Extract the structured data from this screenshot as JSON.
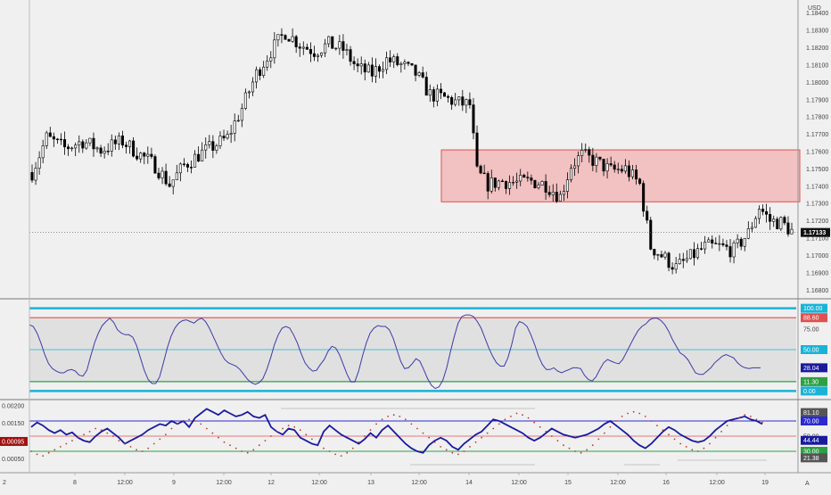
{
  "currency_label": "USD",
  "corner_label": "A",
  "last_price": "1.17133",
  "colors": {
    "background": "#f0f0f0",
    "up_candle": "#ffffff",
    "down_candle": "#000000",
    "zone_fill": "#f2b8b8",
    "zone_stroke": "#e05050",
    "stoch_line": "#3b3ba8",
    "cyan": "#1ab3d6",
    "red": "#e05050",
    "green": "#2ea043",
    "blue": "#2a2ad0",
    "dark_blue": "#1a1a9e",
    "dot_red": "#c0392b"
  },
  "chart_data": [
    {
      "type": "candlestick",
      "title": "",
      "y_axis_ticks": [
        "1.18400",
        "1.18300",
        "1.18200",
        "1.18100",
        "1.18000",
        "1.17900",
        "1.17800",
        "1.17700",
        "1.17600",
        "1.17500",
        "1.17400",
        "1.17300",
        "1.17200",
        "1.17100",
        "1.17000",
        "1.16900",
        "1.16800"
      ],
      "ylim": [
        1.1675,
        1.1845
      ],
      "x_ticks": [
        "8",
        "12:00",
        "9",
        "12:00",
        "12",
        "12:00",
        "13",
        "12:00",
        "14",
        "12:00",
        "15",
        "12:00",
        "16",
        "12:00",
        "19"
      ],
      "first_tick_label": "2",
      "zone": {
        "top": 1.1761,
        "bottom": 1.1731
      },
      "last_price": 1.17133,
      "close_path": [
        [
          0,
          1.1748
        ],
        [
          4,
          1.1768
        ],
        [
          9,
          1.1762
        ],
        [
          14,
          1.1766
        ],
        [
          19,
          1.1761
        ],
        [
          25,
          1.1766
        ],
        [
          30,
          1.1758
        ],
        [
          34,
          1.1752
        ],
        [
          38,
          1.1741
        ],
        [
          42,
          1.1752
        ],
        [
          46,
          1.1758
        ],
        [
          50,
          1.1763
        ],
        [
          54,
          1.1768
        ],
        [
          58,
          1.1785
        ],
        [
          62,
          1.1805
        ],
        [
          66,
          1.1818
        ],
        [
          70,
          1.1829
        ],
        [
          74,
          1.1822
        ],
        [
          78,
          1.1818
        ],
        [
          82,
          1.1822
        ],
        [
          86,
          1.1819
        ],
        [
          90,
          1.1808
        ],
        [
          94,
          1.1805
        ],
        [
          98,
          1.1813
        ],
        [
          102,
          1.181
        ],
        [
          106,
          1.1805
        ],
        [
          110,
          1.1793
        ],
        [
          114,
          1.1791
        ],
        [
          118,
          1.1788
        ],
        [
          121,
          1.1787
        ],
        [
          123,
          1.1748
        ],
        [
          126,
          1.1741
        ],
        [
          130,
          1.1743
        ],
        [
          134,
          1.1742
        ],
        [
          138,
          1.1743
        ],
        [
          142,
          1.1741
        ],
        [
          146,
          1.1734
        ],
        [
          149,
          1.1752
        ],
        [
          152,
          1.1758
        ],
        [
          156,
          1.1754
        ],
        [
          160,
          1.1749
        ],
        [
          164,
          1.175
        ],
        [
          168,
          1.1741
        ],
        [
          171,
          1.1705
        ],
        [
          174,
          1.17
        ],
        [
          178,
          1.1693
        ],
        [
          182,
          1.1699
        ],
        [
          186,
          1.1705
        ],
        [
          190,
          1.1705
        ],
        [
          194,
          1.1703
        ],
        [
          198,
          1.1713
        ],
        [
          201,
          1.1728
        ],
        [
          204,
          1.172
        ],
        [
          207,
          1.1719
        ],
        [
          210,
          1.1714
        ]
      ],
      "candle_count": 211,
      "panes": [
        {
          "type": "line",
          "name": "",
          "y_axis_labels": [
            "100.00",
            "88.60",
            "75.00",
            "50.00",
            "28.04",
            "11.30",
            "0.00"
          ],
          "ylim": [
            -5,
            105
          ],
          "levels": [
            100,
            88.6,
            50,
            11.3,
            0
          ],
          "current_value": 28.04,
          "values": [
            80,
            78,
            70,
            58,
            44,
            33,
            27,
            24,
            22,
            22,
            25,
            26,
            24,
            19,
            18,
            25,
            42,
            58,
            70,
            79,
            84,
            88,
            83,
            74,
            70,
            68,
            68,
            65,
            55,
            40,
            25,
            14,
            9,
            9,
            17,
            34,
            52,
            66,
            76,
            82,
            85,
            86,
            84,
            82,
            86,
            88,
            84,
            76,
            66,
            56,
            46,
            38,
            34,
            32,
            30,
            26,
            20,
            14,
            10,
            8,
            10,
            15,
            26,
            40,
            56,
            68,
            76,
            78,
            76,
            68,
            58,
            45,
            34,
            28,
            24,
            25,
            32,
            38,
            48,
            54,
            52,
            44,
            32,
            20,
            11,
            11,
            24,
            42,
            58,
            70,
            76,
            79,
            78,
            78,
            74,
            64,
            50,
            36,
            27,
            28,
            33,
            39,
            36,
            26,
            15,
            7,
            3,
            5,
            13,
            28,
            48,
            66,
            82,
            90,
            92,
            92,
            90,
            84,
            76,
            64,
            52,
            42,
            34,
            30,
            30,
            40,
            56,
            76,
            84,
            82,
            78,
            68,
            56,
            42,
            32,
            26,
            26,
            28,
            24,
            22,
            24,
            26,
            28,
            28,
            27,
            19,
            14,
            12,
            17,
            26,
            34,
            38,
            36,
            34,
            33,
            38,
            47,
            56,
            65,
            73,
            78,
            81,
            86,
            88,
            88,
            85,
            80,
            72,
            62,
            54,
            46,
            43,
            38,
            30,
            22,
            20,
            20,
            24,
            28,
            34,
            38,
            42,
            44,
            42,
            40,
            34,
            30,
            28,
            27,
            28,
            28,
            28
          ]
        },
        {
          "type": "line",
          "name": "",
          "y_axis_labels": [
            "0.00200",
            "0.00150",
            "0.00095",
            "0.00050"
          ],
          "right_axis_labels": [
            "81.10",
            "70.00",
            "50.00",
            "44.44",
            "30.00",
            "21.38"
          ],
          "ylim_left": [
            0.0004,
            0.0021
          ],
          "current_left_value": 0.00095,
          "levels": [
            70,
            50,
            30
          ],
          "current_right_value": 44.44,
          "series": [
            {
              "name": "",
              "color": "#1a1a9e",
              "values": [
                62,
                68,
                64,
                58,
                54,
                58,
                52,
                55,
                48,
                44,
                42,
                50,
                56,
                60,
                54,
                48,
                40,
                44,
                48,
                52,
                58,
                62,
                66,
                64,
                70,
                66,
                70,
                62,
                74,
                80,
                86,
                82,
                78,
                84,
                80,
                76,
                78,
                82,
                76,
                74,
                78,
                62,
                56,
                52,
                60,
                58,
                48,
                44,
                40,
                38,
                56,
                64,
                58,
                52,
                48,
                44,
                40,
                46,
                54,
                48,
                58,
                64,
                56,
                48,
                40,
                34,
                30,
                28,
                38,
                44,
                48,
                44,
                36,
                32,
                40,
                46,
                52,
                56,
                64,
                72,
                70,
                66,
                62,
                58,
                54,
                48,
                44,
                48,
                54,
                60,
                56,
                52,
                50,
                48,
                50,
                52,
                56,
                60,
                66,
                70,
                64,
                58,
                52,
                44,
                38,
                34,
                40,
                48,
                56,
                62,
                58,
                52,
                48,
                44,
                42,
                44,
                50,
                58,
                64,
                70,
                72,
                74,
                76,
                72,
                70,
                66
              ]
            },
            {
              "name": "",
              "color": "#c0392b",
              "dots": true,
              "values": [
                30,
                26,
                24,
                28,
                32,
                36,
                40,
                44,
                48,
                52,
                56,
                60,
                58,
                54,
                50,
                44,
                40,
                36,
                32,
                30,
                34,
                40,
                46,
                52,
                60,
                66,
                70,
                72,
                70,
                66,
                60,
                54,
                48,
                42,
                38,
                34,
                30,
                28,
                32,
                38,
                44,
                50,
                56,
                60,
                64,
                62,
                58,
                52,
                46,
                40,
                34,
                30,
                26,
                24,
                28,
                34,
                42,
                50,
                58,
                66,
                72,
                76,
                78,
                76,
                72,
                66,
                60,
                54,
                48,
                42,
                36,
                32,
                28,
                26,
                30,
                36,
                42,
                48,
                54,
                60,
                66,
                72,
                76,
                80,
                78,
                74,
                68,
                62,
                56,
                50,
                44,
                38,
                34,
                30,
                28,
                32,
                38,
                46,
                54,
                62,
                70,
                76,
                80,
                82,
                80,
                76,
                70,
                64,
                58,
                52,
                46,
                40,
                36,
                32,
                30,
                34,
                40,
                48,
                56,
                64,
                70,
                74,
                78,
                76,
                72,
                68
              ]
            }
          ]
        }
      ]
    }
  ]
}
